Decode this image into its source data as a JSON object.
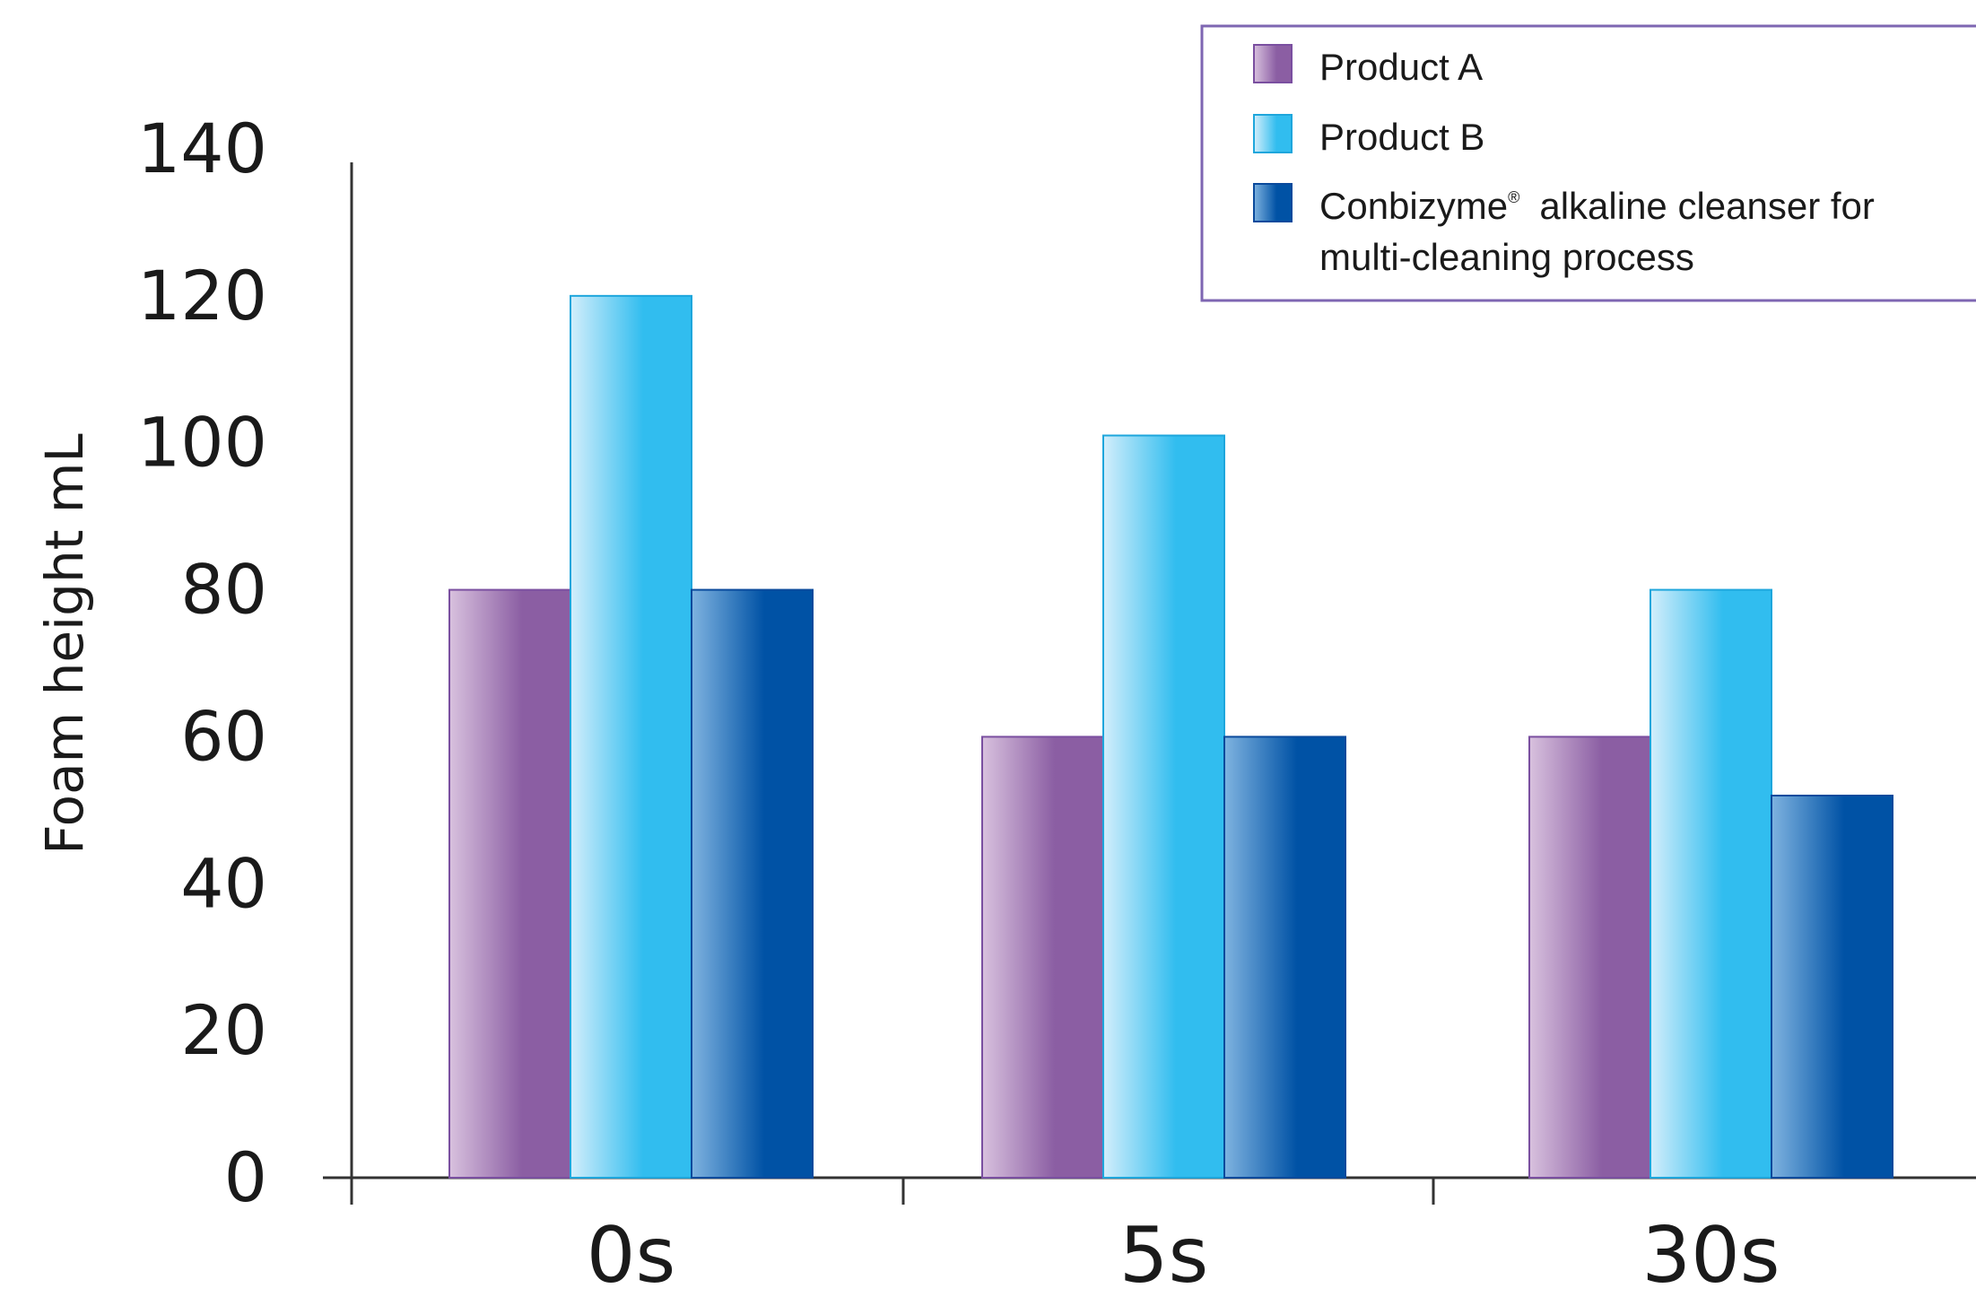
{
  "chart_data": {
    "type": "bar",
    "title": "",
    "xlabel": "",
    "ylabel": "Foam height mL",
    "ylim": [
      0,
      140
    ],
    "yticks": [
      "0",
      "20",
      "40",
      "60",
      "80",
      "100",
      "120",
      "140"
    ],
    "categories": [
      "0s",
      "5s",
      "30s"
    ],
    "grid": false,
    "legend_position": "top-right",
    "series": [
      {
        "name": "Product A",
        "values": [
          80,
          60,
          60
        ],
        "color": "#8b5ea3",
        "color_light": "#d8c1de",
        "border": "#7a4fa0"
      },
      {
        "name": "Product B",
        "values": [
          120,
          101,
          80
        ],
        "color": "#31bdef",
        "color_light": "#d3eefb",
        "border": "#1ea6dc"
      },
      {
        "name": "Conbizyme",
        "name_sup": "®",
        "name_rest_line1": "alkaline cleanser for",
        "name_rest_line2": "multi-cleaning process",
        "values": [
          80,
          60,
          52
        ],
        "color": "#0052a5",
        "color_light": "#7fb3e0",
        "border": "#0a4a9c"
      }
    ],
    "legend_border_color": "#7e66b2",
    "axis_color": "#333333"
  }
}
